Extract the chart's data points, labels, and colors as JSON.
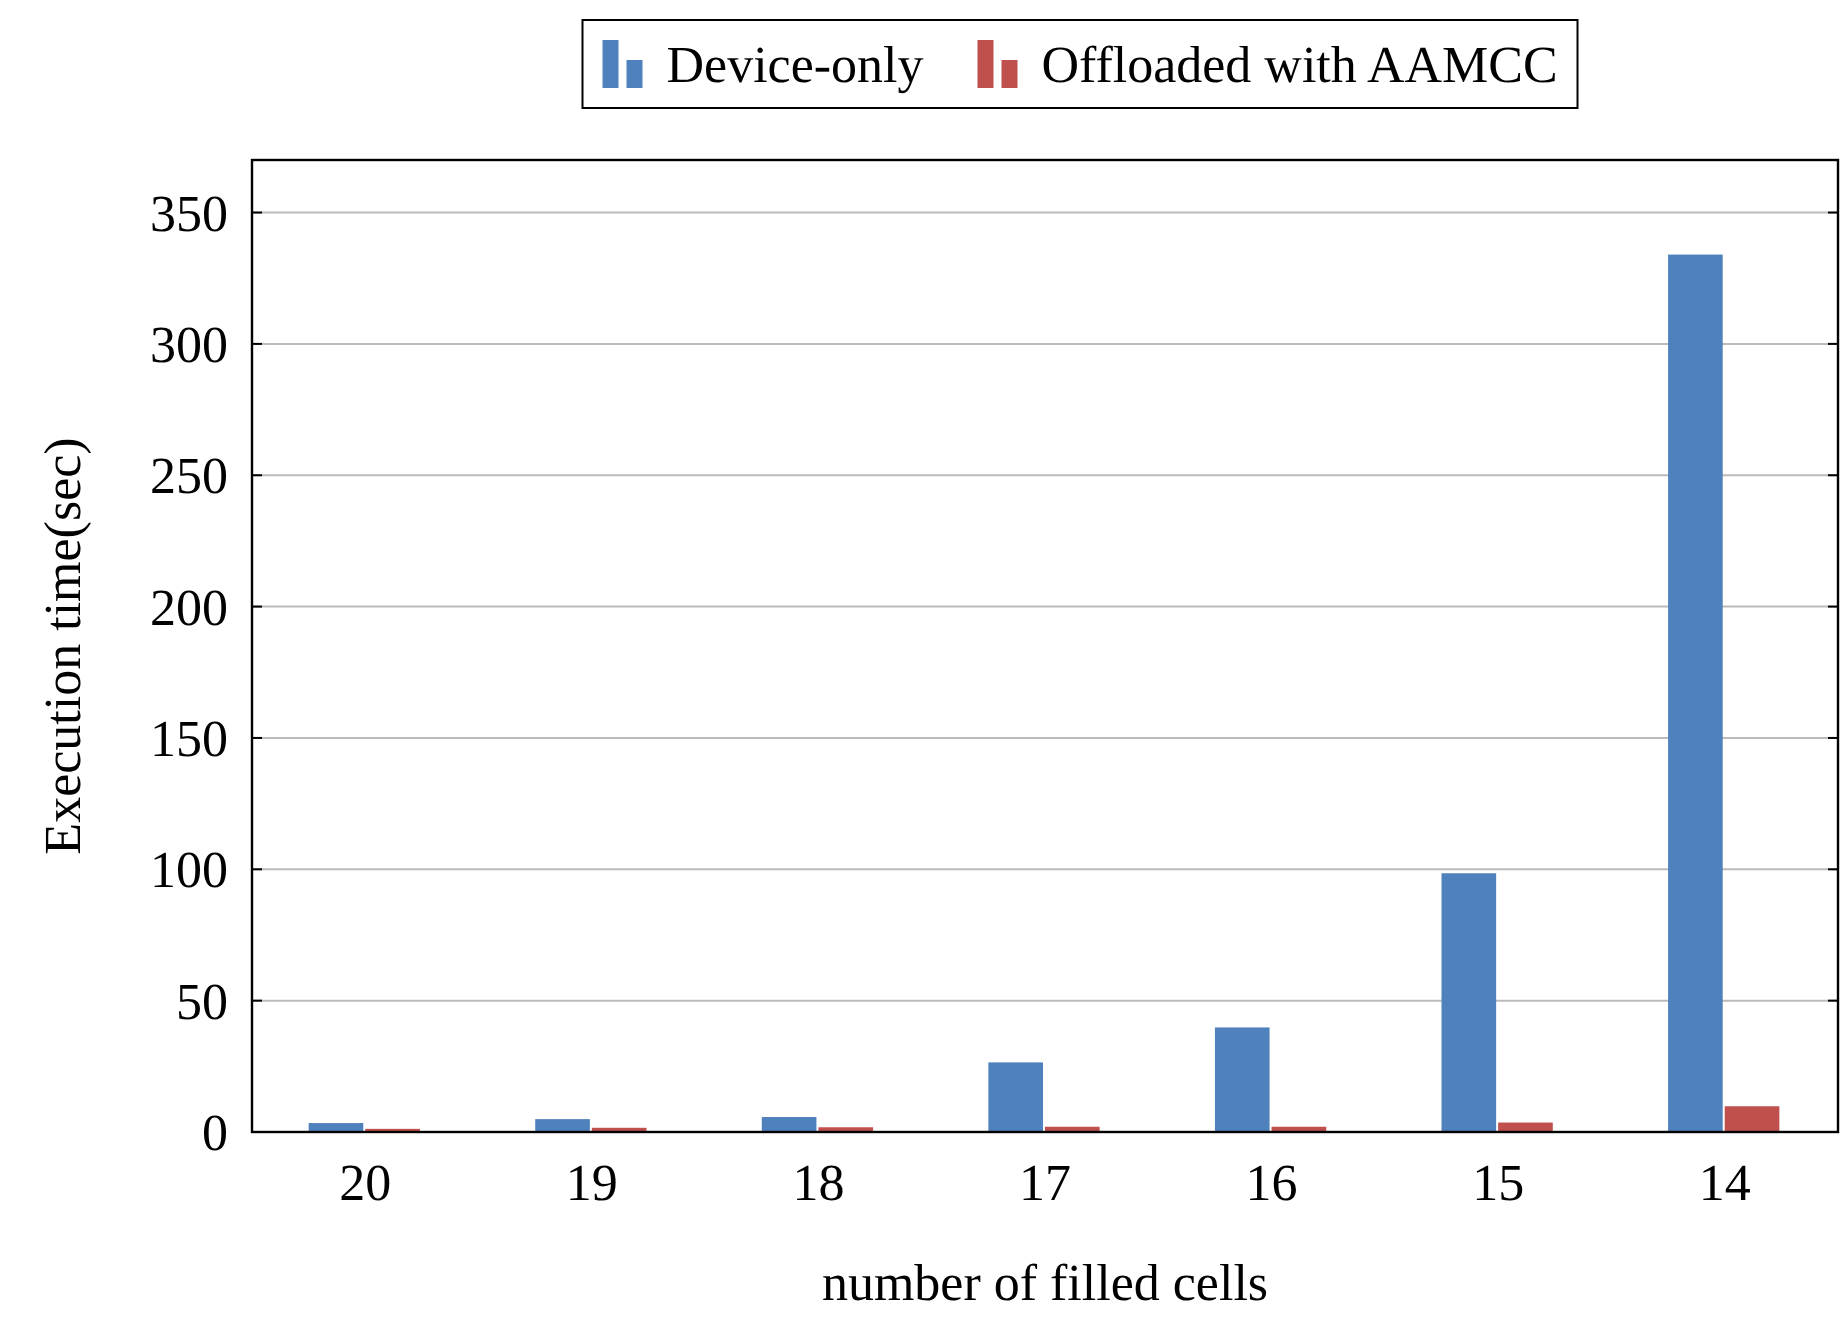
{
  "chart_data": {
    "type": "bar",
    "xlabel": "number of filled cells",
    "ylabel": "Execution time(sec)",
    "categories": [
      "20",
      "19",
      "18",
      "17",
      "16",
      "15",
      "14"
    ],
    "series": [
      {
        "name": "Device-only",
        "color": "#4f81bd",
        "values": [
          3.4,
          4.9,
          5.7,
          26.5,
          39.8,
          98.5,
          334
        ]
      },
      {
        "name": "Offloaded with AAMCC",
        "color": "#c0504d",
        "values": [
          1.2,
          1.6,
          1.8,
          2,
          2,
          3.6,
          9.8
        ]
      }
    ],
    "ylim": [
      0,
      370
    ],
    "yticks": [
      0,
      50,
      100,
      150,
      200,
      250,
      300,
      350
    ],
    "grid": "y",
    "legend": "top"
  }
}
